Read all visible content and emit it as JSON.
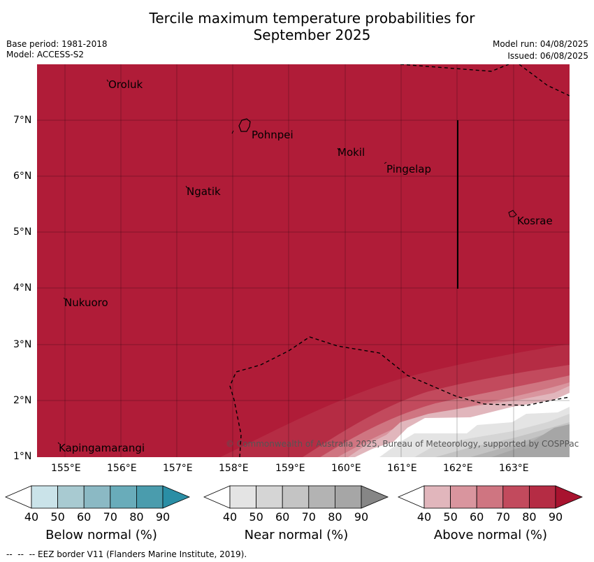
{
  "header": {
    "title_line1": "Tercile maximum temperature probabilities for",
    "title_line2": "September 2025",
    "base_period": "Base period: 1981-2018",
    "model": "Model: ACCESS-S2",
    "model_run": "Model run: 04/08/2025",
    "issued": "Issued: 06/08/2025"
  },
  "map": {
    "lon_ticks": [
      "155°E",
      "156°E",
      "157°E",
      "158°E",
      "159°E",
      "160°E",
      "161°E",
      "162°E",
      "163°E"
    ],
    "lat_ticks": [
      "1°N",
      "2°N",
      "3°N",
      "4°N",
      "5°N",
      "6°N",
      "7°N"
    ],
    "places": [
      "Oroluk",
      "Pohnpei",
      "Mokil",
      "Pingelap",
      "Ngatik",
      "Kosrae",
      "Nukuoro",
      "Kapingamarangi"
    ],
    "copyright": "© Commonwealth of Australia 2025, Bureau of Meteorology, supported by COSPPac",
    "colors": {
      "above_90": "#b01c38",
      "above_80": "#c24a5d",
      "above_70": "#cf7581",
      "above_60": "#d9959e",
      "above_50": "#e1b6bc",
      "near_40": "#e4e4e4",
      "near_50": "#d5d5d5",
      "near_60": "#c4c4c4",
      "near_70": "#b3b3b3",
      "near_80": "#a6a6a6"
    }
  },
  "legend": {
    "below": {
      "label": "Below normal (%)",
      "colors": [
        "#ffffff",
        "#cae3e9",
        "#a8cad1",
        "#8bb9c4",
        "#69acba",
        "#4a9cad",
        "#2a8ea5"
      ]
    },
    "near": {
      "label": "Near normal (%)",
      "colors": [
        "#ffffff",
        "#e4e4e4",
        "#d5d5d5",
        "#c4c4c4",
        "#b3b3b3",
        "#a6a6a6",
        "#868686"
      ]
    },
    "above": {
      "label": "Above normal (%)",
      "colors": [
        "#ffffff",
        "#e1b6bc",
        "#d9959e",
        "#cf7581",
        "#c24a5d",
        "#b52c44",
        "#a8132f"
      ]
    },
    "ticks": [
      "40",
      "50",
      "60",
      "70",
      "80",
      "90"
    ]
  },
  "footnote": "--  --  -- EEZ border V11 (Flanders Marine Institute, 2019)."
}
